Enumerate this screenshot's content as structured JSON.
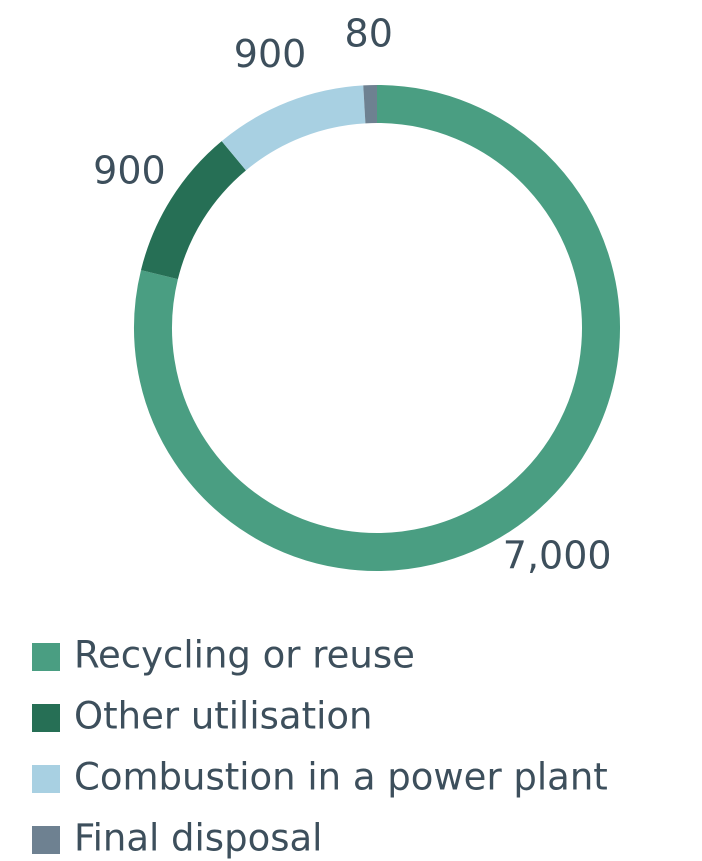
{
  "chart_data": {
    "type": "donut",
    "categories": [
      "Recycling or reuse",
      "Other utilisation",
      "Combustion in a power plant",
      "Final disposal"
    ],
    "values": [
      7000,
      900,
      900,
      80
    ],
    "value_labels": [
      "7,000",
      "900",
      "900",
      "80"
    ],
    "colors": [
      "#4a9e82",
      "#266f55",
      "#a8d0e2",
      "#6e8191"
    ]
  }
}
